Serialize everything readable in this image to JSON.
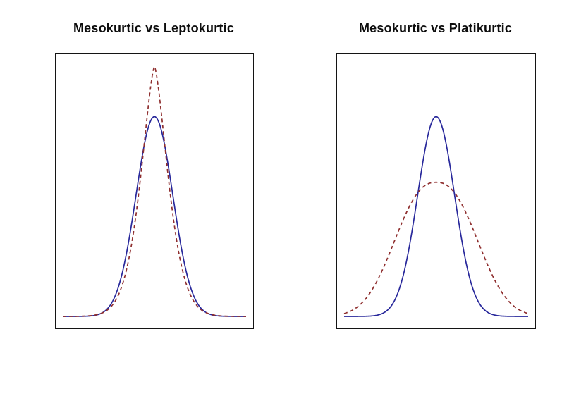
{
  "page": {
    "background_color": "#ffffff",
    "description": "Two side-by-side kurtosis comparison density plots"
  },
  "chart_data": [
    {
      "type": "line",
      "title": "Mesokurtic vs Leptokurtic",
      "xlabel": "",
      "ylabel": "",
      "x_range": [
        -5,
        5
      ],
      "ylim": [
        0,
        1
      ],
      "grid": false,
      "axes_visible": false,
      "legend_position": "none",
      "frame_color": "#141414",
      "series": [
        {
          "name": "Mesokurtic",
          "line_style": "solid",
          "color": "#28289B",
          "shape": "generalized_normal",
          "center": 0,
          "alpha": 1.42,
          "beta": 2.0,
          "peak": 0.76
        },
        {
          "name": "Leptokurtic",
          "line_style": "dashed",
          "color": "#8F2F2F",
          "shape": "generalized_normal",
          "center": 0,
          "alpha": 1.08,
          "beta": 1.5,
          "peak": 0.95
        }
      ]
    },
    {
      "type": "line",
      "title": "Mesokurtic vs Platikurtic",
      "xlabel": "",
      "ylabel": "",
      "x_range": [
        -5,
        5
      ],
      "ylim": [
        0,
        1
      ],
      "grid": false,
      "axes_visible": false,
      "legend_position": "none",
      "frame_color": "#141414",
      "series": [
        {
          "name": "Mesokurtic",
          "line_style": "solid",
          "color": "#28289B",
          "shape": "generalized_normal",
          "center": 0,
          "alpha": 1.42,
          "beta": 2.0,
          "peak": 0.76
        },
        {
          "name": "Platikurtic",
          "line_style": "dashed",
          "color": "#8F2F2F",
          "shape": "generalized_normal",
          "center": 0,
          "alpha": 2.85,
          "beta": 2.4,
          "peak": 0.51
        }
      ]
    }
  ]
}
